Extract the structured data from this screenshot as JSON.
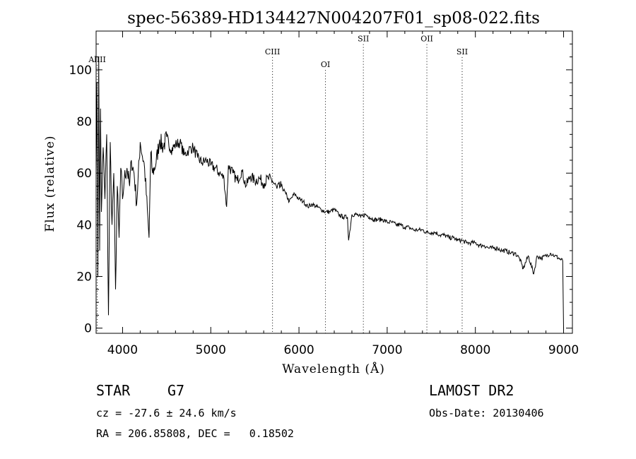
{
  "chart_data": {
    "type": "line",
    "title": "spec-56389-HD134427N004207F01_sp08-022.fits",
    "xlabel": "Wavelength (Å)",
    "ylabel": "Flux (relative)",
    "xlim": [
      3700,
      9100
    ],
    "ylim": [
      -2,
      115
    ],
    "xticks": [
      4000,
      5000,
      6000,
      7000,
      8000,
      9000
    ],
    "yticks": [
      0,
      20,
      40,
      60,
      80,
      100
    ],
    "grid": false,
    "series": [
      {
        "x": [
          3700,
          3710,
          3720,
          3730,
          3740,
          3750,
          3760,
          3780,
          3800,
          3820,
          3840,
          3860,
          3880,
          3900,
          3920,
          3940,
          3960,
          3980,
          4000,
          4020,
          4050,
          4080,
          4100,
          4130,
          4160,
          4200,
          4250,
          4300,
          4320,
          4340,
          4380,
          4420,
          4460,
          4500,
          4550,
          4600,
          4650,
          4700,
          4750,
          4800,
          4850,
          4900,
          4950,
          5000,
          5050,
          5100,
          5150,
          5180,
          5200,
          5250,
          5300,
          5350,
          5400,
          5450,
          5500,
          5550,
          5600,
          5650,
          5700,
          5750,
          5800,
          5850,
          5890,
          5950,
          6000,
          6050,
          6100,
          6150,
          6200,
          6250,
          6300,
          6350,
          6400,
          6450,
          6500,
          6550,
          6563,
          6600,
          6650,
          6700,
          6750,
          6800,
          6850,
          6900,
          6950,
          7000,
          7050,
          7100,
          7150,
          7200,
          7250,
          7300,
          7350,
          7400,
          7450,
          7500,
          7550,
          7600,
          7650,
          7700,
          7750,
          7800,
          7850,
          7900,
          7950,
          8000,
          8050,
          8100,
          8150,
          8200,
          8250,
          8300,
          8350,
          8400,
          8450,
          8500,
          8542,
          8600,
          8662,
          8700,
          8750,
          8800,
          8850,
          8900,
          8950,
          8990,
          9000
        ],
        "y": [
          60,
          95,
          20,
          105,
          30,
          85,
          45,
          70,
          50,
          75,
          5,
          72,
          40,
          60,
          15,
          55,
          35,
          62,
          50,
          58,
          62,
          55,
          65,
          60,
          48,
          72,
          62,
          35,
          68,
          60,
          64,
          73,
          70,
          74,
          69,
          71,
          72,
          67,
          69,
          70,
          66,
          64,
          65,
          63,
          62,
          60,
          58,
          47,
          63,
          60,
          57,
          61,
          55,
          59,
          57,
          58,
          56,
          58,
          57,
          54,
          55,
          52,
          49,
          52,
          50,
          49,
          47,
          48,
          47,
          46,
          45,
          45,
          46,
          44,
          43,
          43,
          34,
          44,
          44,
          43,
          44,
          43,
          42,
          42,
          42,
          41,
          41,
          40,
          40,
          39,
          39,
          38,
          38,
          38,
          37,
          37,
          37,
          36,
          36,
          35,
          35,
          34,
          34,
          33,
          33,
          33,
          32,
          32,
          31,
          31,
          31,
          30,
          30,
          29,
          29,
          27,
          23,
          28,
          21,
          28,
          27,
          28,
          29,
          28,
          27,
          26,
          0
        ]
      }
    ],
    "line_markers": [
      {
        "label": "AlIII",
        "x": 3713,
        "y": 103
      },
      {
        "label": "CIII",
        "x": 5700,
        "y": 106
      },
      {
        "label": "OI",
        "x": 6300,
        "y": 101
      },
      {
        "label": "SII",
        "x": 6730,
        "y": 111
      },
      {
        "label": "OII",
        "x": 7450,
        "y": 111
      },
      {
        "label": "SII",
        "x": 7850,
        "y": 106
      }
    ]
  },
  "info": {
    "class": "STAR",
    "subclass": "G7",
    "survey": "LAMOST DR2",
    "cz": "cz = -27.6 ± 24.6 km/s",
    "obs_date": "Obs-Date: 20130406",
    "coords": "RA = 206.85808, DEC =   0.18502"
  }
}
